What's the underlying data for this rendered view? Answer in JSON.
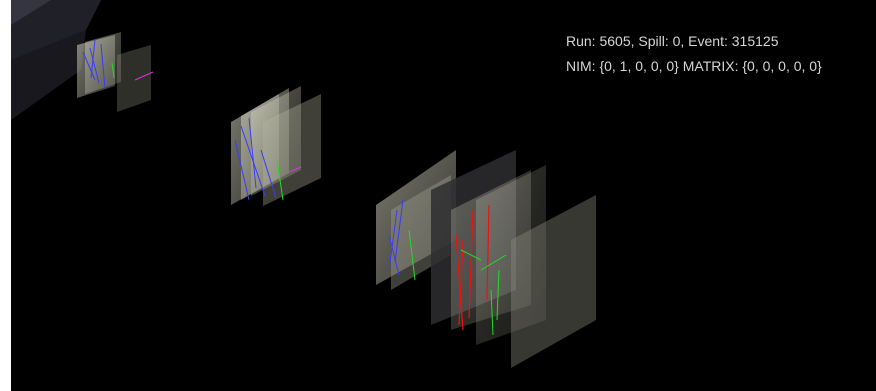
{
  "event_info": {
    "run_line": "Run: 5605, Spill: 0, Event: 315125",
    "trigger_line": "NIM: {0, 1, 0, 0, 0}  MATRIX: {0, 0, 0, 0, 0}"
  },
  "colors": {
    "background": "#000000",
    "detector_plane": "#c9c9b4",
    "track_blue": "#3a3aff",
    "track_green": "#22dd22",
    "track_red": "#ee1111",
    "track_magenta": "#dd33dd"
  }
}
